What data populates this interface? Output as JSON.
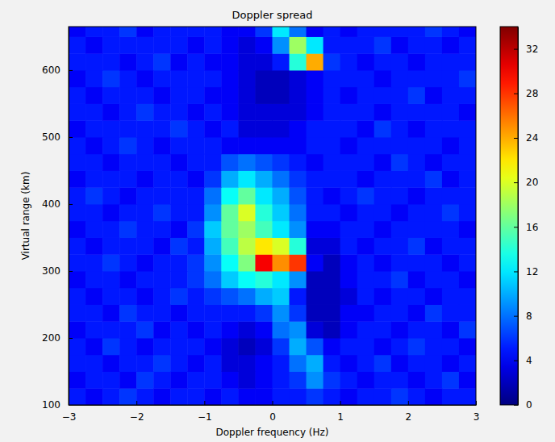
{
  "chart_data": {
    "type": "heatmap",
    "title": "Doppler spread",
    "x_label": "Doppler frequency (Hz)",
    "y_label": "Virtual range (km)",
    "xlim": [
      -3,
      3
    ],
    "ylim": [
      100,
      665
    ],
    "xticks": [
      -3,
      -2,
      -1,
      0,
      1,
      2,
      3
    ],
    "yticks": [
      100,
      200,
      300,
      400,
      500,
      600
    ],
    "x": [
      -2.875,
      -2.625,
      -2.375,
      -2.125,
      -1.875,
      -1.625,
      -1.375,
      -1.125,
      -0.875,
      -0.625,
      -0.375,
      -0.125,
      0.125,
      0.375,
      0.625,
      0.875,
      1.125,
      1.375,
      1.625,
      1.875,
      2.125,
      2.375,
      2.625,
      2.875
    ],
    "y": [
      112.5,
      137.5,
      162.5,
      187.5,
      212.5,
      237.5,
      262.5,
      287.5,
      312.5,
      337.5,
      362.5,
      387.5,
      412.5,
      437.5,
      462.5,
      487.5,
      512.5,
      537.5,
      562.5,
      587.5,
      612.5,
      637.5,
      662.5
    ],
    "cells": [
      [
        5,
        4,
        5,
        6,
        5,
        4,
        5,
        5,
        4,
        5,
        4,
        4,
        5,
        5,
        6,
        5,
        4,
        5,
        5,
        6,
        5,
        4,
        5,
        5
      ],
      [
        4,
        5,
        5,
        4,
        6,
        5,
        4,
        5,
        5,
        4,
        3,
        4,
        5,
        6,
        9,
        6,
        5,
        4,
        5,
        5,
        4,
        5,
        6,
        4
      ],
      [
        5,
        5,
        4,
        5,
        5,
        6,
        5,
        4,
        5,
        3,
        3,
        4,
        5,
        8,
        10,
        5,
        4,
        5,
        6,
        4,
        5,
        5,
        4,
        5
      ],
      [
        5,
        4,
        6,
        5,
        4,
        5,
        5,
        5,
        4,
        3,
        2,
        3,
        6,
        10,
        7,
        4,
        5,
        5,
        4,
        5,
        6,
        5,
        5,
        4
      ],
      [
        4,
        5,
        5,
        5,
        6,
        4,
        5,
        4,
        5,
        4,
        3,
        4,
        8,
        9,
        3,
        2,
        4,
        5,
        5,
        4,
        5,
        5,
        4,
        6
      ],
      [
        5,
        5,
        4,
        6,
        5,
        5,
        4,
        5,
        5,
        5,
        5,
        6,
        9,
        6,
        2,
        2,
        4,
        4,
        5,
        5,
        4,
        6,
        5,
        5
      ],
      [
        5,
        4,
        5,
        5,
        4,
        5,
        6,
        5,
        6,
        7,
        8,
        10,
        11,
        5,
        2,
        2,
        3,
        5,
        4,
        5,
        5,
        4,
        5,
        5
      ],
      [
        4,
        5,
        5,
        4,
        5,
        5,
        5,
        6,
        8,
        11,
        13,
        14,
        12,
        9,
        2,
        2,
        4,
        5,
        5,
        6,
        4,
        5,
        5,
        4
      ],
      [
        5,
        5,
        6,
        5,
        4,
        5,
        5,
        6,
        9,
        13,
        17,
        30,
        25,
        28,
        4,
        2,
        4,
        5,
        4,
        5,
        5,
        5,
        4,
        5
      ],
      [
        5,
        4,
        5,
        5,
        5,
        4,
        6,
        5,
        10,
        15,
        19,
        22,
        20,
        14,
        3,
        3,
        5,
        4,
        5,
        5,
        6,
        4,
        5,
        5
      ],
      [
        4,
        5,
        5,
        6,
        5,
        5,
        4,
        6,
        11,
        16,
        18,
        15,
        12,
        9,
        4,
        4,
        5,
        5,
        4,
        5,
        5,
        5,
        5,
        4
      ],
      [
        5,
        5,
        4,
        5,
        5,
        6,
        5,
        5,
        9,
        16,
        20,
        14,
        11,
        8,
        5,
        5,
        4,
        5,
        5,
        4,
        5,
        5,
        6,
        5
      ],
      [
        5,
        6,
        5,
        4,
        5,
        5,
        5,
        5,
        8,
        13,
        16,
        12,
        10,
        7,
        5,
        4,
        5,
        6,
        5,
        5,
        4,
        5,
        5,
        5
      ],
      [
        4,
        5,
        5,
        5,
        4,
        5,
        5,
        4,
        6,
        10,
        12,
        10,
        8,
        6,
        5,
        5,
        5,
        4,
        5,
        5,
        5,
        6,
        4,
        5
      ],
      [
        5,
        5,
        4,
        5,
        5,
        5,
        4,
        5,
        5,
        7,
        8,
        7,
        6,
        5,
        4,
        5,
        5,
        5,
        4,
        6,
        5,
        4,
        5,
        5
      ],
      [
        5,
        4,
        5,
        6,
        5,
        4,
        5,
        5,
        5,
        4,
        4,
        4,
        4,
        4,
        5,
        5,
        4,
        5,
        5,
        5,
        5,
        5,
        4,
        5
      ],
      [
        4,
        5,
        5,
        5,
        5,
        5,
        6,
        5,
        4,
        5,
        3,
        3,
        3,
        4,
        5,
        5,
        5,
        4,
        6,
        5,
        4,
        5,
        5,
        5
      ],
      [
        5,
        5,
        4,
        5,
        6,
        5,
        5,
        4,
        5,
        4,
        3,
        3,
        3,
        3,
        4,
        5,
        5,
        5,
        4,
        5,
        5,
        5,
        5,
        4
      ],
      [
        5,
        4,
        5,
        5,
        5,
        4,
        5,
        5,
        4,
        4,
        3,
        2,
        2,
        3,
        4,
        5,
        4,
        5,
        5,
        5,
        6,
        4,
        5,
        5
      ],
      [
        4,
        5,
        6,
        5,
        4,
        5,
        5,
        5,
        5,
        4,
        3,
        2,
        2,
        3,
        4,
        5,
        5,
        5,
        4,
        5,
        5,
        5,
        5,
        6
      ],
      [
        5,
        5,
        5,
        4,
        5,
        6,
        4,
        5,
        4,
        4,
        3,
        3,
        5,
        14,
        24,
        6,
        5,
        4,
        5,
        5,
        4,
        5,
        5,
        5
      ],
      [
        5,
        4,
        5,
        5,
        5,
        5,
        5,
        4,
        5,
        4,
        3,
        4,
        9,
        18,
        12,
        5,
        5,
        5,
        6,
        4,
        5,
        5,
        4,
        5
      ],
      [
        4,
        5,
        5,
        6,
        4,
        5,
        5,
        5,
        5,
        4,
        4,
        6,
        12,
        8,
        4,
        5,
        4,
        5,
        5,
        5,
        5,
        6,
        5,
        4
      ]
    ],
    "colorbar": {
      "range": [
        0,
        34
      ],
      "ticks": [
        0,
        4,
        8,
        12,
        16,
        20,
        24,
        28,
        32
      ]
    }
  }
}
